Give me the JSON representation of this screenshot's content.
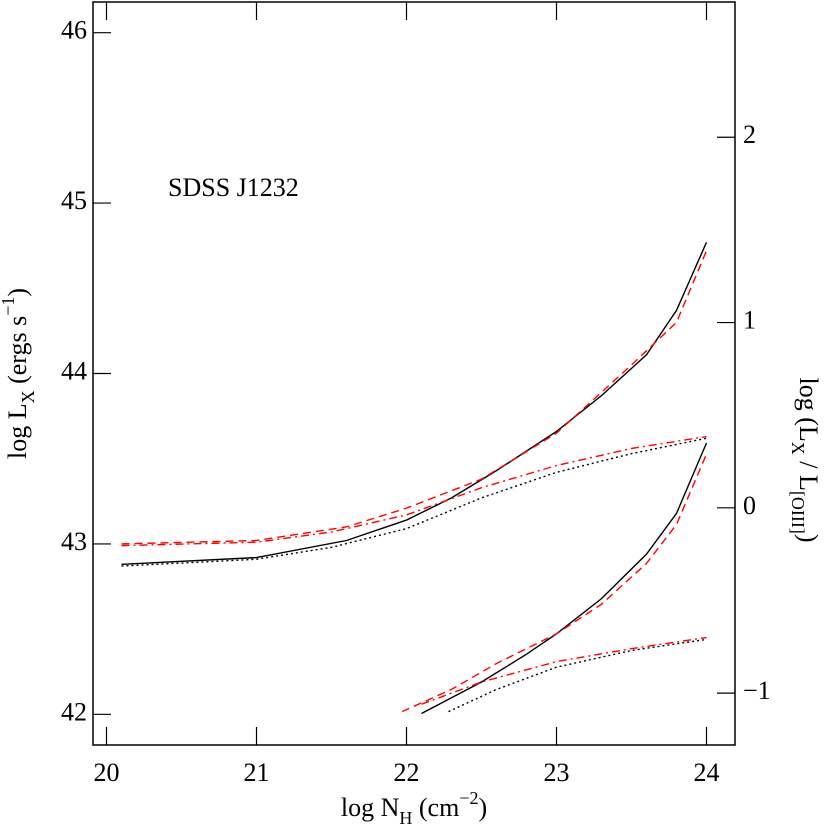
{
  "chart_data": {
    "type": "line",
    "annotation": "SDSS J1232",
    "xlabel": [
      {
        "text": "log N"
      },
      {
        "text": "H",
        "style": "sub"
      },
      {
        "text": " (cm"
      },
      {
        "text": "−2",
        "style": "sup"
      },
      {
        "text": ")"
      }
    ],
    "ylabel": [
      {
        "text": "log L"
      },
      {
        "text": "X",
        "style": "sub"
      },
      {
        "text": " (ergs s"
      },
      {
        "text": "−1",
        "style": "sup"
      },
      {
        "text": ")"
      }
    ],
    "y2label": [
      {
        "text": "log (L"
      },
      {
        "text": "X",
        "style": "sub"
      },
      {
        "text": " / L"
      },
      {
        "text": "[OIII]",
        "style": "sub"
      },
      {
        "text": ")"
      }
    ],
    "xlim": [
      19.91,
      24.19
    ],
    "xticks": [
      20,
      21,
      22,
      23,
      24
    ],
    "ylim": [
      41.82,
      46.18
    ],
    "yticks": [
      42,
      43,
      44,
      45,
      46
    ],
    "y2lim": [
      -1.28,
      2.73
    ],
    "y2ticks": [
      {
        "value": -1,
        "label": "−1"
      },
      0,
      1,
      2
    ],
    "series": [
      {
        "color": "#000000",
        "dash": "solid",
        "x": [
          20.1,
          21,
          21.6,
          22,
          22.3,
          22.6,
          23,
          23.3,
          23.6,
          23.8,
          24
        ],
        "values": [
          42.88,
          42.92,
          43.02,
          43.14,
          43.27,
          43.43,
          43.66,
          43.87,
          44.11,
          44.37,
          44.77
        ]
      },
      {
        "color": "#000000",
        "dash": "dotted",
        "x": [
          20.1,
          21,
          21.5,
          22,
          22.5,
          23,
          23.5,
          24
        ],
        "values": [
          42.87,
          42.91,
          42.98,
          43.09,
          43.27,
          43.42,
          43.53,
          43.62
        ]
      },
      {
        "color": "#ff0000",
        "dash": "dashed",
        "x": [
          20.1,
          21,
          21.6,
          22,
          22.5,
          23,
          23.5,
          23.8,
          24
        ],
        "values": [
          43.0,
          43.02,
          43.1,
          43.21,
          43.38,
          43.65,
          44.05,
          44.3,
          44.72
        ]
      },
      {
        "color": "#ff0000",
        "dash": "dashdot",
        "x": [
          20.1,
          21,
          21.5,
          22,
          22.5,
          23,
          23.5,
          24
        ],
        "values": [
          42.99,
          43.01,
          43.07,
          43.17,
          43.33,
          43.46,
          43.56,
          43.63
        ]
      },
      {
        "color": "#000000",
        "dash": "solid",
        "axis": "y2",
        "x": [
          22.1,
          22.5,
          22.8,
          23,
          23.3,
          23.6,
          23.8,
          24
        ],
        "values": [
          -1.11,
          -0.94,
          -0.79,
          -0.68,
          -0.49,
          -0.25,
          -0.03,
          0.35
        ]
      },
      {
        "color": "#ff0000",
        "dash": "dashed",
        "axis": "y2",
        "x": [
          21.97,
          22.3,
          22.6,
          23,
          23.3,
          23.6,
          23.8,
          24
        ],
        "values": [
          -1.1,
          -0.98,
          -0.84,
          -0.68,
          -0.52,
          -0.3,
          -0.09,
          0.29
        ]
      },
      {
        "color": "#000000",
        "dash": "dotted",
        "axis": "y2",
        "x": [
          22.28,
          22.6,
          23,
          23.5,
          24
        ],
        "values": [
          -1.1,
          -0.98,
          -0.86,
          -0.77,
          -0.71
        ]
      },
      {
        "color": "#ff0000",
        "dash": "dashdot",
        "axis": "y2",
        "x": [
          22.1,
          22.5,
          23,
          23.5,
          24
        ],
        "values": [
          -1.06,
          -0.94,
          -0.83,
          -0.76,
          -0.7
        ]
      }
    ]
  }
}
